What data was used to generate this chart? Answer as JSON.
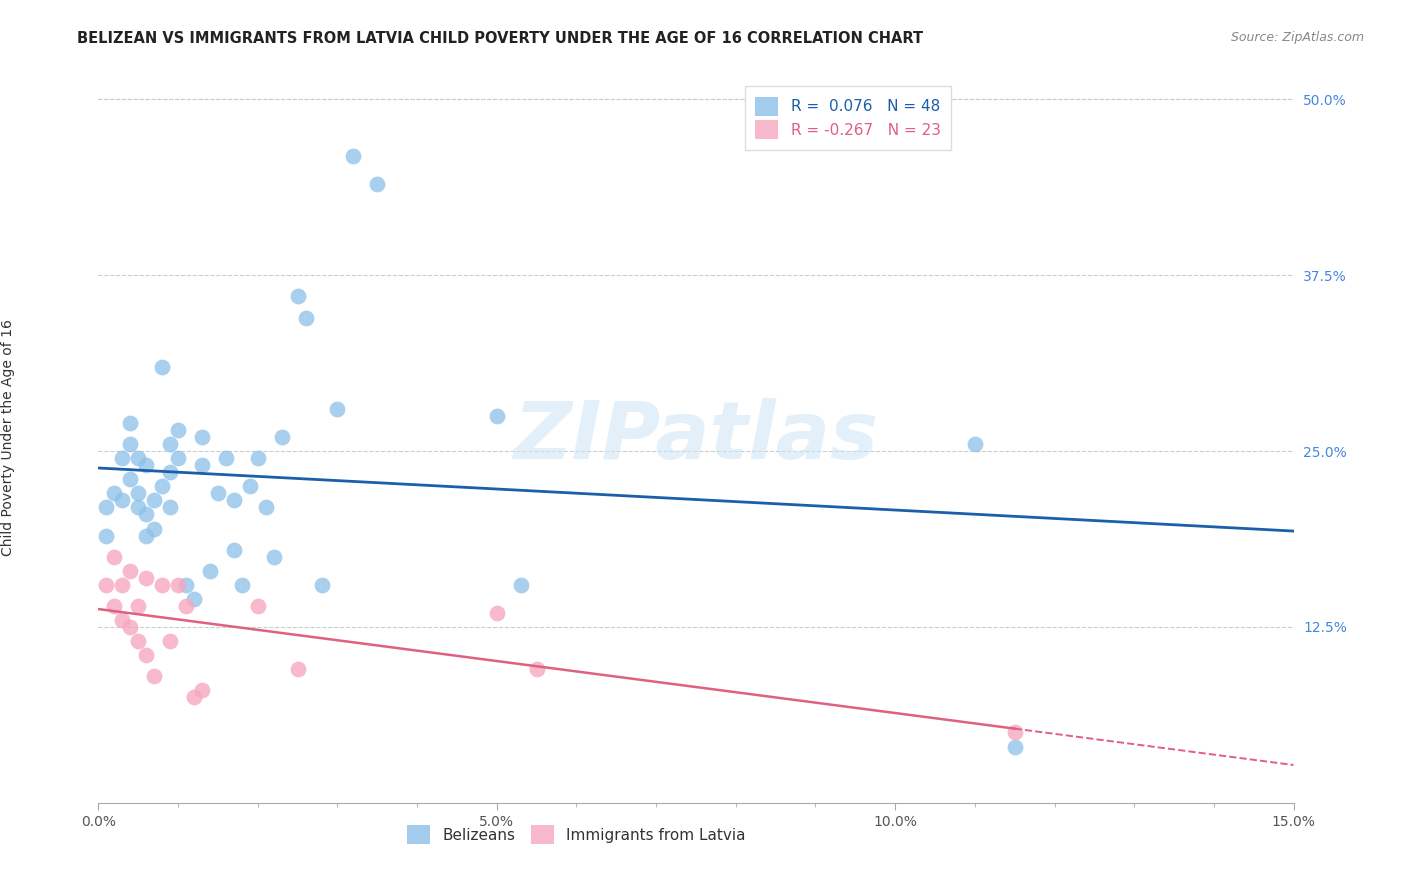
{
  "title": "BELIZEAN VS IMMIGRANTS FROM LATVIA CHILD POVERTY UNDER THE AGE OF 16 CORRELATION CHART",
  "source": "Source: ZipAtlas.com",
  "xlabel_label": "Belizeans",
  "xlabel_label2": "Immigrants from Latvia",
  "ylabel": "Child Poverty Under the Age of 16",
  "xlim": [
    0.0,
    0.15
  ],
  "ylim": [
    0.0,
    0.52
  ],
  "xticks": [
    0.0,
    0.05,
    0.1,
    0.15
  ],
  "xtick_labels": [
    "0.0%",
    "5.0%",
    "10.0%",
    "15.0%"
  ],
  "yticks": [
    0.125,
    0.25,
    0.375,
    0.5
  ],
  "ytick_labels": [
    "12.5%",
    "25.0%",
    "37.5%",
    "50.0%"
  ],
  "blue_R": 0.076,
  "blue_N": 48,
  "pink_R": -0.267,
  "pink_N": 23,
  "blue_color": "#8bbfe8",
  "pink_color": "#f5a8be",
  "blue_line_color": "#1a5fa8",
  "pink_line_color": "#e06080",
  "watermark": "ZIPatlas",
  "blue_points_x": [
    0.001,
    0.001,
    0.002,
    0.003,
    0.003,
    0.004,
    0.004,
    0.004,
    0.005,
    0.005,
    0.005,
    0.006,
    0.006,
    0.006,
    0.007,
    0.007,
    0.008,
    0.008,
    0.009,
    0.009,
    0.009,
    0.01,
    0.01,
    0.011,
    0.012,
    0.013,
    0.013,
    0.014,
    0.015,
    0.016,
    0.017,
    0.017,
    0.018,
    0.019,
    0.02,
    0.021,
    0.022,
    0.023,
    0.025,
    0.026,
    0.028,
    0.03,
    0.032,
    0.035,
    0.05,
    0.053,
    0.11,
    0.115
  ],
  "blue_points_y": [
    0.21,
    0.19,
    0.22,
    0.245,
    0.215,
    0.27,
    0.255,
    0.23,
    0.245,
    0.22,
    0.21,
    0.205,
    0.24,
    0.19,
    0.215,
    0.195,
    0.31,
    0.225,
    0.255,
    0.235,
    0.21,
    0.265,
    0.245,
    0.155,
    0.145,
    0.26,
    0.24,
    0.165,
    0.22,
    0.245,
    0.215,
    0.18,
    0.155,
    0.225,
    0.245,
    0.21,
    0.175,
    0.26,
    0.36,
    0.345,
    0.155,
    0.28,
    0.46,
    0.44,
    0.275,
    0.155,
    0.255,
    0.04
  ],
  "pink_points_x": [
    0.001,
    0.002,
    0.002,
    0.003,
    0.003,
    0.004,
    0.004,
    0.005,
    0.005,
    0.006,
    0.006,
    0.007,
    0.008,
    0.009,
    0.01,
    0.011,
    0.012,
    0.013,
    0.02,
    0.025,
    0.05,
    0.055,
    0.115
  ],
  "pink_points_y": [
    0.155,
    0.175,
    0.14,
    0.155,
    0.13,
    0.165,
    0.125,
    0.14,
    0.115,
    0.105,
    0.16,
    0.09,
    0.155,
    0.115,
    0.155,
    0.14,
    0.075,
    0.08,
    0.14,
    0.095,
    0.135,
    0.095,
    0.05
  ],
  "title_fontsize": 10.5,
  "source_fontsize": 9,
  "axis_label_fontsize": 10,
  "tick_fontsize": 10,
  "legend_fontsize": 11,
  "ytick_color": "#4488dd",
  "xtick_color": "#555555",
  "grid_color": "#cccccc"
}
